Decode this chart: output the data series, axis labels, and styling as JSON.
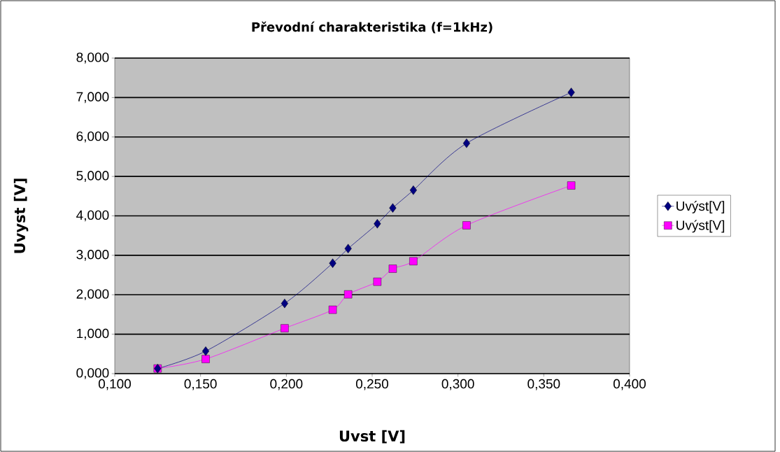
{
  "chart_data": {
    "type": "line",
    "title": "Převodní charakteristika (f=1kHz)",
    "xlabel": "Uvst [V]",
    "ylabel": "Uvyst [V]",
    "xlim": [
      0.1,
      0.4
    ],
    "xticks": [
      {
        "value": 0.1,
        "label": "0,100"
      },
      {
        "value": 0.15,
        "label": "0,150"
      },
      {
        "value": 0.2,
        "label": "0,200"
      },
      {
        "value": 0.25,
        "label": "0,250"
      },
      {
        "value": 0.3,
        "label": "0,300"
      },
      {
        "value": 0.35,
        "label": "0,350"
      },
      {
        "value": 0.4,
        "label": "0,400"
      }
    ],
    "ylim": [
      0,
      8
    ],
    "yticks": [
      {
        "value": 0,
        "label": "0,000"
      },
      {
        "value": 1,
        "label": "1,000"
      },
      {
        "value": 2,
        "label": "2,000"
      },
      {
        "value": 3,
        "label": "3,000"
      },
      {
        "value": 4,
        "label": "4,000"
      },
      {
        "value": 5,
        "label": "5,000"
      },
      {
        "value": 6,
        "label": "6,000"
      },
      {
        "value": 7,
        "label": "7,000"
      },
      {
        "value": 8,
        "label": "8,000"
      }
    ],
    "grid": "y",
    "legend": "right",
    "line_style": "solid",
    "series": [
      {
        "name": "Uvýst[V]",
        "color": "#000080",
        "marker": "diamond",
        "x": [
          0.125,
          0.153,
          0.199,
          0.227,
          0.236,
          0.253,
          0.262,
          0.274,
          0.305,
          0.366
        ],
        "values": [
          0.13,
          0.57,
          1.78,
          2.8,
          3.17,
          3.8,
          4.2,
          4.65,
          5.84,
          7.13
        ]
      },
      {
        "name": "Uvýst[V]",
        "color": "#ff00ff",
        "marker": "square",
        "x": [
          0.125,
          0.153,
          0.199,
          0.227,
          0.236,
          0.253,
          0.262,
          0.274,
          0.305,
          0.366
        ],
        "values": [
          0.13,
          0.37,
          1.15,
          1.62,
          2.01,
          2.33,
          2.66,
          2.85,
          3.76,
          4.77
        ]
      }
    ]
  }
}
